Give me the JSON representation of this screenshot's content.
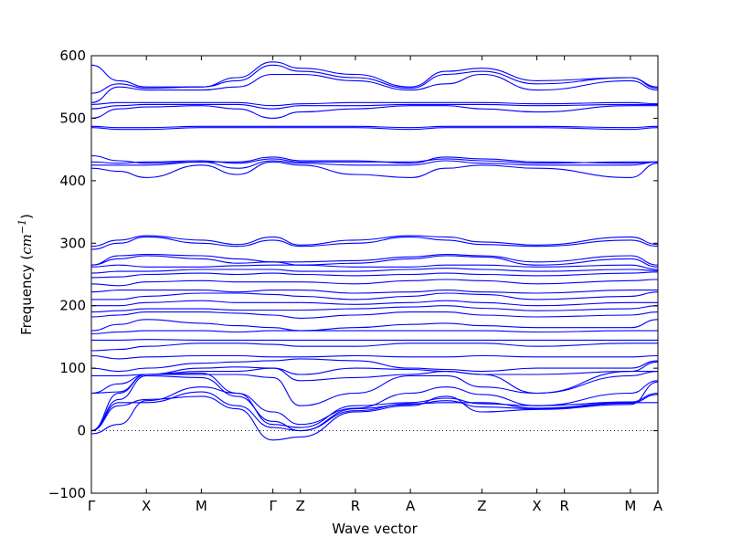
{
  "chart_data": {
    "type": "line",
    "xlabel": "Wave vector",
    "ylabel": "Frequency",
    "ylabel_unit_base": "cm",
    "ylabel_unit_exp": "−1",
    "ylim": [
      -100,
      600
    ],
    "yticks": [
      -100,
      0,
      100,
      200,
      300,
      400,
      500,
      600
    ],
    "grid": false,
    "legend": "none",
    "line_color": "#0000ff",
    "zero_line_style": "dotted",
    "kpoints": [
      {
        "label": "Γ",
        "x": 0.0
      },
      {
        "label": "X",
        "x": 0.5
      },
      {
        "label": "M",
        "x": 1.0
      },
      {
        "label": "Γ",
        "x": 1.65
      },
      {
        "label": "Z",
        "x": 1.9
      },
      {
        "label": "R",
        "x": 2.4
      },
      {
        "label": "A",
        "x": 2.9
      },
      {
        "label": "Z",
        "x": 3.55
      },
      {
        "label": "X",
        "x": 4.05
      },
      {
        "label": "R",
        "x": 4.3
      },
      {
        "label": "M",
        "x": 4.9
      },
      {
        "label": "A",
        "x": 5.15
      }
    ],
    "series": [
      {
        "values": [
          0,
          60,
          90,
          92,
          60,
          10,
          5,
          40,
          45,
          52,
          43,
          40,
          46,
          60
        ]
      },
      {
        "values": [
          0,
          50,
          88,
          85,
          55,
          15,
          0,
          35,
          42,
          48,
          38,
          35,
          44,
          58
        ]
      },
      {
        "values": [
          0,
          45,
          45,
          62,
          40,
          5,
          0,
          32,
          43,
          45,
          45,
          36,
          45,
          45
        ]
      },
      {
        "values": [
          0,
          40,
          50,
          55,
          35,
          -15,
          -10,
          30,
          40,
          55,
          30,
          34,
          42,
          78
        ]
      },
      {
        "values": [
          -5,
          10,
          48,
          70,
          60,
          30,
          10,
          36,
          60,
          70,
          58,
          40,
          60,
          80
        ]
      },
      {
        "values": [
          60,
          75,
          90,
          90,
          90,
          85,
          40,
          60,
          88,
          88,
          70,
          60,
          88,
          95
        ]
      },
      {
        "values": [
          60,
          62,
          90,
          95,
          95,
          100,
          80,
          85,
          90,
          95,
          90,
          60,
          95,
          95
        ]
      },
      {
        "values": [
          88,
          88,
          90,
          100,
          102,
          100,
          90,
          100,
          98,
          95,
          90,
          90,
          95,
          110
        ]
      },
      {
        "values": [
          100,
          95,
          100,
          108,
          110,
          112,
          115,
          112,
          100,
          98,
          95,
          100,
          100,
          112
        ]
      },
      {
        "values": [
          120,
          115,
          118,
          120,
          120,
          118,
          118,
          120,
          118,
          118,
          120,
          118,
          118,
          120
        ]
      },
      {
        "values": [
          128,
          130,
          135,
          140,
          140,
          138,
          135,
          135,
          140,
          140,
          140,
          135,
          140,
          140
        ]
      },
      {
        "values": [
          145,
          145,
          146,
          145,
          145,
          145,
          145,
          145,
          145,
          145,
          145,
          145,
          145,
          145
        ]
      },
      {
        "values": [
          155,
          158,
          160,
          160,
          158,
          160,
          160,
          160,
          160,
          160,
          160,
          158,
          160,
          160
        ]
      },
      {
        "values": [
          160,
          170,
          178,
          172,
          168,
          165,
          160,
          165,
          170,
          172,
          168,
          165,
          165,
          178
        ]
      },
      {
        "values": [
          182,
          185,
          190,
          190,
          188,
          185,
          180,
          185,
          190,
          190,
          185,
          182,
          185,
          190
        ]
      },
      {
        "values": [
          190,
          192,
          195,
          195,
          193,
          193,
          193,
          195,
          198,
          200,
          196,
          192,
          195,
          200
        ]
      },
      {
        "values": [
          200,
          200,
          205,
          208,
          205,
          205,
          205,
          202,
          205,
          208,
          205,
          200,
          205,
          205
        ]
      },
      {
        "values": [
          210,
          210,
          215,
          220,
          220,
          218,
          215,
          210,
          215,
          220,
          218,
          210,
          215,
          222
        ]
      },
      {
        "values": [
          222,
          225,
          225,
          225,
          222,
          225,
          225,
          220,
          222,
          225,
          222,
          220,
          225,
          225
        ]
      },
      {
        "values": [
          235,
          232,
          238,
          240,
          238,
          238,
          238,
          235,
          240,
          242,
          240,
          235,
          240,
          242
        ]
      },
      {
        "values": [
          245,
          246,
          250,
          252,
          250,
          252,
          250,
          248,
          250,
          252,
          250,
          248,
          252,
          254
        ]
      },
      {
        "values": [
          252,
          255,
          255,
          258,
          258,
          258,
          255,
          255,
          258,
          260,
          258,
          255,
          258,
          256
        ]
      },
      {
        "values": [
          262,
          265,
          262,
          262,
          264,
          265,
          265,
          262,
          262,
          265,
          265,
          262,
          265,
          258
        ]
      },
      {
        "values": [
          265,
          275,
          280,
          275,
          268,
          270,
          265,
          268,
          275,
          280,
          278,
          265,
          275,
          262
        ]
      },
      {
        "values": [
          265,
          280,
          282,
          280,
          275,
          270,
          270,
          272,
          278,
          282,
          280,
          270,
          280,
          265
        ]
      },
      {
        "values": [
          290,
          300,
          310,
          300,
          295,
          305,
          295,
          300,
          310,
          305,
          298,
          295,
          305,
          295
        ]
      },
      {
        "values": [
          295,
          305,
          312,
          305,
          298,
          310,
          297,
          305,
          312,
          310,
          302,
          297,
          310,
          298
        ]
      },
      {
        "values": [
          420,
          415,
          405,
          425,
          410,
          430,
          425,
          410,
          405,
          420,
          425,
          420,
          405,
          428
        ]
      },
      {
        "values": [
          425,
          425,
          425,
          430,
          420,
          432,
          428,
          425,
          425,
          432,
          428,
          425,
          425,
          430
        ]
      },
      {
        "values": [
          430,
          428,
          430,
          432,
          428,
          435,
          430,
          430,
          430,
          435,
          432,
          428,
          430,
          430
        ]
      },
      {
        "values": [
          440,
          432,
          428,
          430,
          430,
          438,
          432,
          432,
          428,
          438,
          435,
          430,
          428,
          430
        ]
      },
      {
        "values": [
          485,
          482,
          482,
          485,
          485,
          485,
          485,
          485,
          482,
          485,
          485,
          485,
          482,
          485
        ]
      },
      {
        "values": [
          487,
          485,
          485,
          487,
          487,
          487,
          487,
          487,
          485,
          487,
          487,
          487,
          485,
          487
        ]
      },
      {
        "values": [
          500,
          515,
          518,
          520,
          515,
          500,
          510,
          515,
          520,
          520,
          515,
          510,
          520,
          520
        ]
      },
      {
        "values": [
          515,
          520,
          522,
          522,
          522,
          515,
          520,
          520,
          522,
          522,
          522,
          520,
          522,
          522
        ]
      },
      {
        "values": [
          522,
          525,
          525,
          525,
          525,
          520,
          523,
          525,
          525,
          525,
          525,
          523,
          525,
          523
        ]
      },
      {
        "values": [
          525,
          550,
          545,
          545,
          550,
          570,
          570,
          560,
          545,
          555,
          570,
          545,
          560,
          545
        ]
      },
      {
        "values": [
          540,
          555,
          548,
          550,
          560,
          585,
          575,
          565,
          548,
          570,
          575,
          555,
          565,
          548
        ]
      },
      {
        "values": [
          585,
          560,
          550,
          550,
          565,
          590,
          580,
          570,
          550,
          575,
          580,
          560,
          565,
          550
        ]
      }
    ]
  }
}
